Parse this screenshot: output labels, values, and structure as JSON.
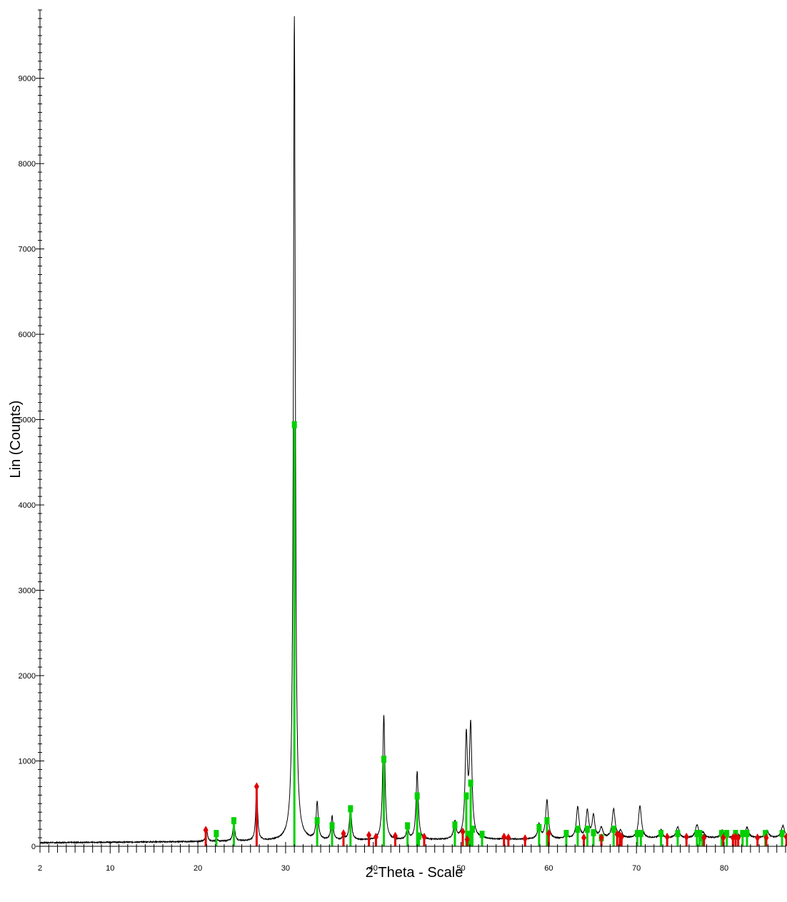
{
  "chart_data": {
    "type": "line",
    "title": "",
    "xlabel": "2-Theta - Scale",
    "ylabel": "Lin (Counts)",
    "xlim": [
      2,
      87
    ],
    "ylim": [
      0,
      9800
    ],
    "x_ticks": [
      2,
      10,
      20,
      30,
      40,
      50,
      60,
      70,
      80
    ],
    "y_ticks": [
      0,
      1000,
      2000,
      3000,
      4000,
      5000,
      6000,
      7000,
      8000,
      9000
    ],
    "grid": false,
    "baseline": 42,
    "series": [
      {
        "color": "#000000",
        "peaks": [
          [
            21.0,
            180,
            0.12
          ],
          [
            22.2,
            60,
            0.12
          ],
          [
            24.1,
            260,
            0.13
          ],
          [
            25.8,
            40,
            0.15
          ],
          [
            26.7,
            700,
            0.12
          ],
          [
            31.0,
            9700,
            0.13
          ],
          [
            33.6,
            480,
            0.14
          ],
          [
            35.3,
            320,
            0.14
          ],
          [
            36.6,
            90,
            0.14
          ],
          [
            37.4,
            440,
            0.14
          ],
          [
            41.2,
            1500,
            0.15
          ],
          [
            43.9,
            180,
            0.15
          ],
          [
            45.0,
            840,
            0.15
          ],
          [
            49.3,
            240,
            0.16
          ],
          [
            50.6,
            1200,
            0.16
          ],
          [
            51.1,
            1330,
            0.17
          ],
          [
            52.4,
            80,
            0.16
          ],
          [
            55.0,
            50,
            0.2
          ],
          [
            57.3,
            40,
            0.2
          ],
          [
            58.9,
            210,
            0.18
          ],
          [
            59.8,
            490,
            0.18
          ],
          [
            62.0,
            80,
            0.2
          ],
          [
            63.3,
            410,
            0.18
          ],
          [
            64.4,
            360,
            0.18
          ],
          [
            65.1,
            300,
            0.18
          ],
          [
            66.0,
            160,
            0.2
          ],
          [
            67.4,
            380,
            0.2
          ],
          [
            68.2,
            120,
            0.2
          ],
          [
            70.4,
            420,
            0.2
          ],
          [
            72.8,
            140,
            0.2
          ],
          [
            74.7,
            170,
            0.22
          ],
          [
            76.9,
            190,
            0.22
          ],
          [
            77.6,
            100,
            0.2
          ],
          [
            79.8,
            130,
            0.22
          ],
          [
            81.4,
            110,
            0.22
          ],
          [
            82.6,
            160,
            0.22
          ],
          [
            84.9,
            120,
            0.22
          ],
          [
            86.7,
            180,
            0.22
          ]
        ]
      },
      {
        "color": "#00d000",
        "marker": "square",
        "sticks": [
          [
            22.1,
            150
          ],
          [
            24.1,
            300
          ],
          [
            31.0,
            4940
          ],
          [
            33.6,
            300
          ],
          [
            35.3,
            240
          ],
          [
            37.4,
            440
          ],
          [
            41.2,
            1020
          ],
          [
            43.9,
            240
          ],
          [
            45.0,
            590
          ],
          [
            45.2,
            120
          ],
          [
            49.3,
            250
          ],
          [
            50.6,
            590
          ],
          [
            50.9,
            140
          ],
          [
            51.1,
            740
          ],
          [
            51.3,
            200
          ],
          [
            52.4,
            140
          ],
          [
            58.9,
            220
          ],
          [
            59.8,
            300
          ],
          [
            62.0,
            150
          ],
          [
            63.3,
            200
          ],
          [
            64.4,
            200
          ],
          [
            65.1,
            160
          ],
          [
            66.0,
            100
          ],
          [
            67.4,
            200
          ],
          [
            70.1,
            150
          ],
          [
            70.5,
            150
          ],
          [
            72.8,
            150
          ],
          [
            74.7,
            150
          ],
          [
            76.9,
            150
          ],
          [
            77.2,
            150
          ],
          [
            77.5,
            100
          ],
          [
            79.7,
            150
          ],
          [
            80.3,
            150
          ],
          [
            81.3,
            150
          ],
          [
            82.1,
            150
          ],
          [
            82.6,
            150
          ],
          [
            84.7,
            150
          ],
          [
            86.6,
            150
          ]
        ]
      },
      {
        "color": "#e00000",
        "marker": "diamond",
        "sticks": [
          [
            20.9,
            190
          ],
          [
            26.7,
            700
          ],
          [
            36.6,
            150
          ],
          [
            39.5,
            130
          ],
          [
            40.3,
            110
          ],
          [
            42.5,
            120
          ],
          [
            45.8,
            110
          ],
          [
            50.2,
            170
          ],
          [
            50.7,
            80
          ],
          [
            54.9,
            110
          ],
          [
            55.4,
            100
          ],
          [
            57.3,
            90
          ],
          [
            60.0,
            150
          ],
          [
            64.0,
            100
          ],
          [
            66.0,
            100
          ],
          [
            67.8,
            140
          ],
          [
            68.1,
            130
          ],
          [
            68.3,
            110
          ],
          [
            73.5,
            110
          ],
          [
            75.7,
            110
          ],
          [
            77.7,
            100
          ],
          [
            79.9,
            100
          ],
          [
            81.0,
            100
          ],
          [
            81.3,
            110
          ],
          [
            81.6,
            100
          ],
          [
            83.8,
            100
          ],
          [
            84.8,
            100
          ],
          [
            87.1,
            110
          ]
        ]
      }
    ]
  }
}
